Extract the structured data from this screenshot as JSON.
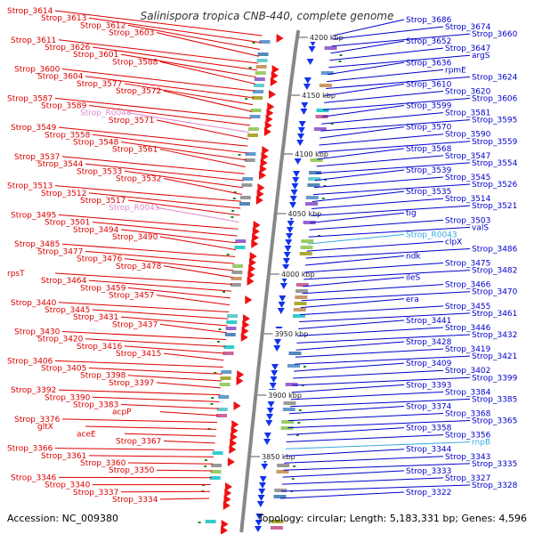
{
  "title": "Salinispora tropica CNB-440, complete genome",
  "accession": "Accession: NC_009380",
  "footer_info": "Topology: circular; Length: 5,183,331 bp; Genes: 4,596",
  "colors": {
    "left_label": "#dd0000",
    "left_rna": "#dd88cc",
    "right_label": "#0000cc",
    "right_rna": "#33aadd",
    "backbone": "#888888",
    "forward_arrow": "#ee1111",
    "reverse_arrow": "#1133ee",
    "tick": "#228822"
  },
  "kbp_labels": [
    "4200 kbp",
    "4150 kbp",
    "4100 kbp",
    "4050 kbp",
    "4000 kbp",
    "3950 kbp",
    "3900 kbp",
    "3850 kbp"
  ],
  "left_labels": [
    "Strop_3614",
    "Strop_3613",
    "Strop_3612",
    "Strop_3603",
    "Strop_3611",
    "Strop_3626",
    "Strop_3601",
    "Strop_3588",
    "Strop_3600",
    "Strop_3604",
    "Strop_3577",
    "Strop_3572",
    "Strop_3587",
    "Strop_3589",
    "Strop_R0046",
    "Strop_3571",
    "Strop_3549",
    "Strop_3558",
    "Strop_3548",
    "Strop_3561",
    "Strop_3537",
    "Strop_3544",
    "Strop_3533",
    "Strop_3532",
    "Strop_3513",
    "Strop_3512",
    "Strop_3517",
    "Strop_R0045",
    "Strop_3495",
    "Strop_3501",
    "Strop_3494",
    "Strop_3490",
    "Strop_3485",
    "Strop_3477",
    "Strop_3476",
    "Strop_3478",
    "rpsT",
    "Strop_3464",
    "Strop_3459",
    "Strop_3457",
    "Strop_3440",
    "Strop_3445",
    "Strop_3431",
    "Strop_3437",
    "Strop_3430",
    "Strop_3420",
    "Strop_3416",
    "Strop_3415",
    "Strop_3406",
    "Strop_3405",
    "Strop_3398",
    "Strop_3397",
    "Strop_3392",
    "Strop_3390",
    "Strop_3383",
    "acpP",
    "Strop_3376",
    "gltX",
    "aceE",
    "Strop_3367",
    "Strop_3366",
    "Strop_3361",
    "Strop_3360",
    "Strop_3350",
    "Strop_3346",
    "Strop_3340",
    "Strop_3337",
    "Strop_3334"
  ],
  "right_labels": [
    "Strop_3686",
    "Strop_3674",
    "Strop_3660",
    "Strop_3652",
    "Strop_3647",
    "argS",
    "Strop_3636",
    "rpmE",
    "Strop_3624",
    "Strop_3610",
    "Strop_3620",
    "Strop_3606",
    "Strop_3599",
    "Strop_3581",
    "Strop_3595",
    "Strop_3570",
    "Strop_3590",
    "Strop_3559",
    "Strop_3568",
    "Strop_3547",
    "Strop_3554",
    "Strop_3539",
    "Strop_3545",
    "Strop_3526",
    "Strop_3535",
    "Strop_3514",
    "Strop_3521",
    "tig",
    "Strop_3503",
    "valS",
    "Strop_R0043",
    "clpX",
    "Strop_3486",
    "ndk",
    "Strop_3475",
    "Strop_3482",
    "ileS",
    "Strop_3466",
    "Strop_3470",
    "era",
    "Strop_3455",
    "Strop_3461",
    "Strop_3441",
    "Strop_3446",
    "Strop_3432",
    "Strop_3428",
    "Strop_3419",
    "Strop_3421",
    "Strop_3409",
    "Strop_3402",
    "Strop_3399",
    "Strop_3393",
    "Strop_3384",
    "Strop_3385",
    "Strop_3374",
    "Strop_3368",
    "Strop_3365",
    "Strop_3358",
    "Strop_3356",
    "rnpB",
    "Strop_3344",
    "Strop_3343",
    "Strop_3335",
    "Strop_3333",
    "Strop_3327",
    "Strop_3328",
    "Strop_3322"
  ],
  "left_rna_labels": [
    "Strop_R0046",
    "Strop_R0045"
  ],
  "right_rna_labels": [
    "Strop_R0043",
    "rnpB"
  ]
}
